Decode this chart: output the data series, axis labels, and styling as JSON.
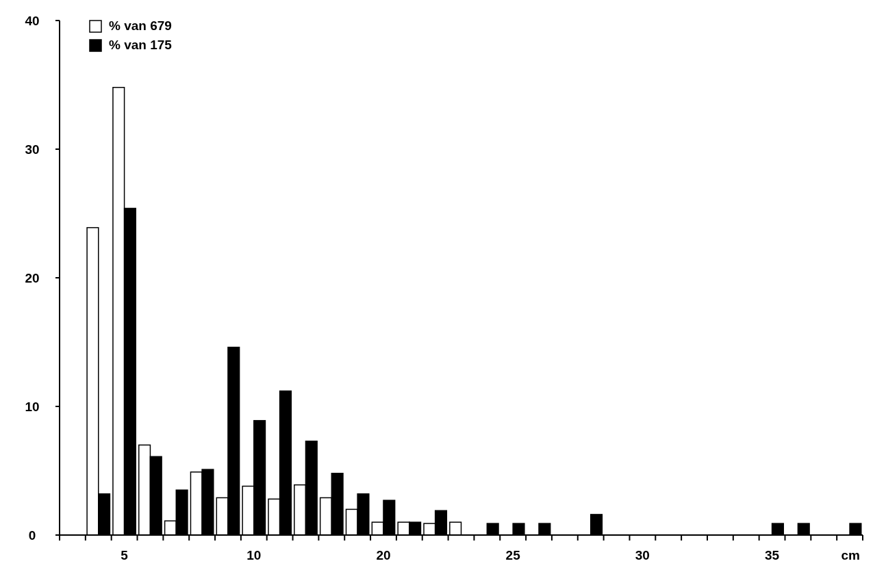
{
  "chart_data": {
    "type": "bar",
    "xlabel": "cm",
    "categories": [
      null,
      null,
      "5",
      null,
      null,
      null,
      null,
      "10",
      null,
      null,
      null,
      null,
      "20",
      null,
      null,
      null,
      null,
      "25",
      null,
      null,
      null,
      null,
      "30",
      null,
      null,
      null,
      null,
      "35",
      null,
      null,
      null
    ],
    "series": [
      {
        "name": "% van 679",
        "color": "#ffffff",
        "values": [
          null,
          23.9,
          34.8,
          7.0,
          1.1,
          4.9,
          2.9,
          3.8,
          2.8,
          3.9,
          2.9,
          2.0,
          1.0,
          1.0,
          0.9,
          1.0,
          null,
          null,
          null,
          null,
          null,
          null,
          null,
          null,
          null,
          null,
          null,
          null,
          null,
          null,
          null
        ]
      },
      {
        "name": "% van 175",
        "color": "#000000",
        "values": [
          null,
          3.2,
          25.4,
          6.1,
          3.5,
          5.1,
          14.6,
          8.9,
          11.2,
          7.3,
          4.8,
          3.2,
          2.7,
          1.0,
          1.9,
          null,
          0.9,
          0.9,
          0.9,
          null,
          1.6,
          null,
          null,
          null,
          null,
          null,
          null,
          0.9,
          0.9,
          null,
          0.9
        ]
      }
    ],
    "ylim": [
      0,
      40
    ],
    "yticks": [
      0,
      10,
      20,
      30,
      40
    ],
    "grid": false,
    "legend": "top left"
  }
}
